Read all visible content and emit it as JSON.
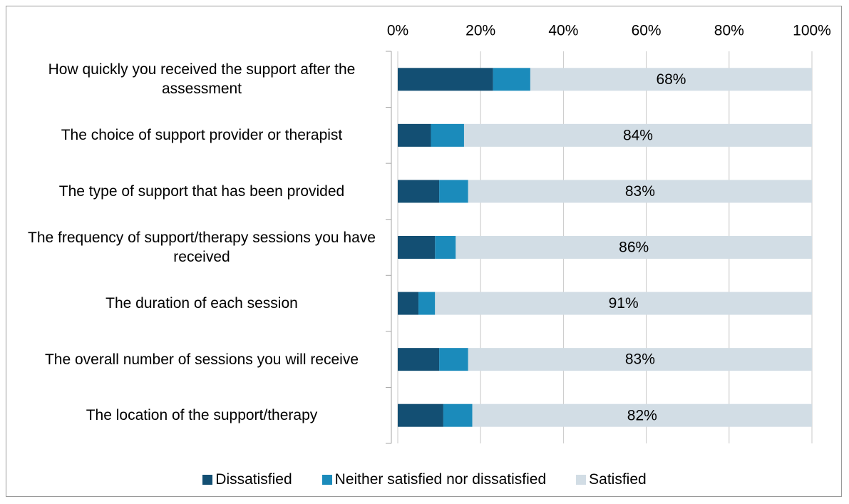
{
  "chart_data": {
    "type": "stacked-bar-horizontal",
    "categories": [
      "How quickly you received the support after the assessment",
      "The choice of support provider or therapist",
      "The type of support that has been provided",
      "The frequency of support/therapy sessions you have received",
      "The duration of each session",
      "The overall number of sessions you will receive",
      "The location of the support/therapy"
    ],
    "series": [
      {
        "name": "Dissatisfied",
        "color": "#134f73",
        "values": [
          23,
          8,
          10,
          9,
          5,
          10,
          11
        ]
      },
      {
        "name": "Neither satisfied nor dissatisfied",
        "color": "#1b8bbb",
        "values": [
          9,
          8,
          7,
          5,
          4,
          7,
          7
        ]
      },
      {
        "name": "Satisfied",
        "color": "#d2dde5",
        "values": [
          68,
          84,
          83,
          86,
          91,
          83,
          82
        ],
        "value_labels": [
          "68%",
          "84%",
          "83%",
          "86%",
          "91%",
          "83%",
          "82%"
        ]
      }
    ],
    "xlim": [
      0,
      100
    ],
    "xticks": [
      {
        "value": 0,
        "label": "0%"
      },
      {
        "value": 20,
        "label": "20%"
      },
      {
        "value": 40,
        "label": "40%"
      },
      {
        "value": 60,
        "label": "60%"
      },
      {
        "value": 80,
        "label": "80%"
      },
      {
        "value": 100,
        "label": "100%"
      }
    ],
    "grid": true,
    "legend": "bottom"
  }
}
